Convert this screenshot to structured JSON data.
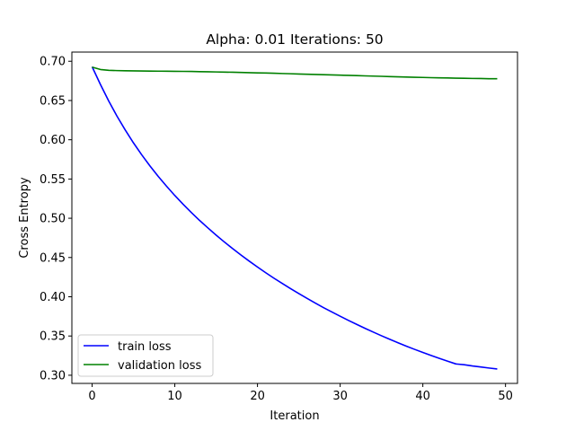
{
  "chart_data": {
    "type": "line",
    "title": "Alpha: 0.01 Iterations: 50",
    "xlabel": "Iteration",
    "ylabel": "Cross Entropy",
    "xlim": [
      -2.45,
      51.45
    ],
    "ylim": [
      0.2896,
      0.7117
    ],
    "xticks": [
      0,
      10,
      20,
      30,
      40,
      50
    ],
    "xtick_labels": [
      "0",
      "10",
      "20",
      "30",
      "40",
      "50"
    ],
    "yticks": [
      0.3,
      0.35,
      0.4,
      0.45,
      0.5,
      0.55,
      0.6,
      0.65,
      0.7
    ],
    "ytick_labels": [
      "0.30",
      "0.35",
      "0.40",
      "0.45",
      "0.50",
      "0.55",
      "0.60",
      "0.65",
      "0.70"
    ],
    "grid": false,
    "legend_position": "lower-left",
    "x": [
      0,
      1,
      2,
      3,
      4,
      5,
      6,
      7,
      8,
      9,
      10,
      11,
      12,
      13,
      14,
      15,
      16,
      17,
      18,
      19,
      20,
      21,
      22,
      23,
      24,
      25,
      26,
      27,
      28,
      29,
      30,
      31,
      32,
      33,
      34,
      35,
      36,
      37,
      38,
      39,
      40,
      41,
      42,
      43,
      44,
      45,
      46,
      47,
      48,
      49
    ],
    "series": [
      {
        "name": "train loss",
        "color": "#0000ff",
        "values": [
          0.693,
          0.6705,
          0.6495,
          0.6302,
          0.6125,
          0.596,
          0.5808,
          0.5666,
          0.5533,
          0.5408,
          0.529,
          0.5179,
          0.5073,
          0.4972,
          0.4877,
          0.4785,
          0.4697,
          0.4613,
          0.4532,
          0.4454,
          0.4379,
          0.4306,
          0.4236,
          0.4169,
          0.4103,
          0.404,
          0.3979,
          0.3919,
          0.3861,
          0.3806,
          0.3752,
          0.3699,
          0.3648,
          0.3598,
          0.355,
          0.3503,
          0.3458,
          0.3414,
          0.3371,
          0.333,
          0.329,
          0.3252,
          0.3215,
          0.3179,
          0.3144,
          0.3134,
          0.3118,
          0.3105,
          0.3092,
          0.308
        ]
      },
      {
        "name": "validation loss",
        "color": "#008000",
        "values": [
          0.6925,
          0.6895,
          0.6885,
          0.6881,
          0.6879,
          0.6877,
          0.6876,
          0.6875,
          0.6874,
          0.6873,
          0.6872,
          0.6871,
          0.687,
          0.6868,
          0.6866,
          0.6864,
          0.6862,
          0.686,
          0.6857,
          0.6855,
          0.6852,
          0.685,
          0.6847,
          0.6844,
          0.6841,
          0.6838,
          0.6835,
          0.6832,
          0.6829,
          0.6826,
          0.6823,
          0.682,
          0.6817,
          0.6814,
          0.6811,
          0.6808,
          0.6805,
          0.6802,
          0.6799,
          0.6796,
          0.6794,
          0.6791,
          0.6789,
          0.6787,
          0.6785,
          0.6783,
          0.6781,
          0.678,
          0.6778,
          0.6777
        ]
      }
    ]
  }
}
